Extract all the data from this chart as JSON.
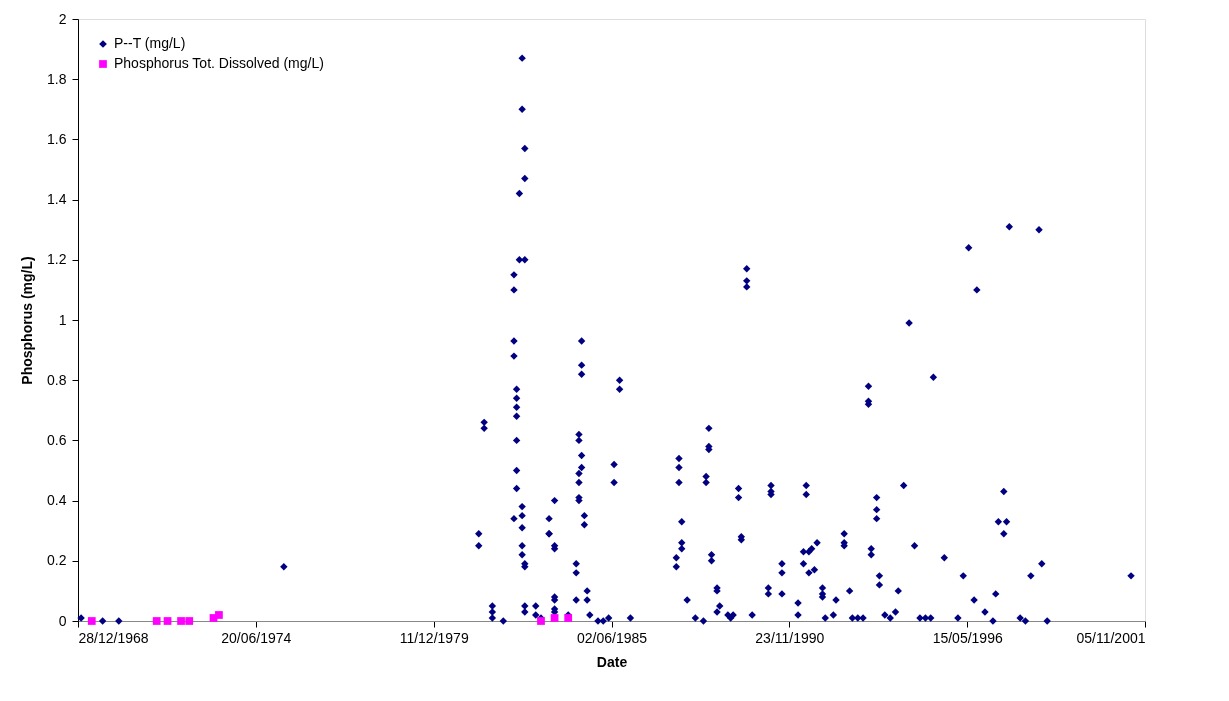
{
  "chart_data": {
    "type": "scatter",
    "xlabel": "Date",
    "ylabel": "Phosphorus (mg/L)",
    "xlim": [
      "1968-12-28",
      "2001-11-05"
    ],
    "xticks": [
      {
        "value": "1968-12-28",
        "label": "28/12/1968"
      },
      {
        "value": "1974-06-20",
        "label": "20/06/1974"
      },
      {
        "value": "1979-12-11",
        "label": "11/12/1979"
      },
      {
        "value": "1985-06-02",
        "label": "02/06/1985"
      },
      {
        "value": "1990-11-23",
        "label": "23/11/1990"
      },
      {
        "value": "1996-05-15",
        "label": "15/05/1996"
      },
      {
        "value": "2001-11-05",
        "label": "05/11/2001"
      }
    ],
    "ylim": [
      0,
      2
    ],
    "yticks": [
      0,
      0.2,
      0.4,
      0.6,
      0.8,
      1,
      1.2,
      1.4,
      1.6,
      1.8,
      2
    ],
    "grid": false,
    "legend": "top left",
    "series": [
      {
        "name": "P--T (mg/L)",
        "color": "#000080",
        "marker": "diamond",
        "x": [
          "1969-02",
          "1969-10",
          "1970-04",
          "1975-05",
          "1981-05",
          "1981-05",
          "1981-07",
          "1981-07",
          "1981-10",
          "1981-10",
          "1981-10",
          "1982-02",
          "1982-06",
          "1982-06",
          "1982-07",
          "1982-07",
          "1982-07",
          "1982-07",
          "1982-07",
          "1982-07",
          "1982-07",
          "1982-06",
          "1982-06",
          "1982-06",
          "1982-08",
          "1982-10",
          "1982-08",
          "1982-10",
          "1982-10",
          "1982-09",
          "1982-09",
          "1982-09",
          "1982-09",
          "1982-09",
          "1982-09",
          "1982-09",
          "1982-10",
          "1982-10",
          "1982-10",
          "1982-10",
          "1983-02",
          "1983-02",
          "1983-04",
          "1983-07",
          "1983-07",
          "1983-07",
          "1983-09",
          "1983-09",
          "1983-09",
          "1983-09",
          "1983-09",
          "1983-09",
          "1983-09",
          "1984-02",
          "1984-05",
          "1984-05",
          "1984-05",
          "1984-09",
          "1984-09",
          "1984-10",
          "1984-06",
          "1984-06",
          "1984-06",
          "1984-06",
          "1984-06",
          "1984-06",
          "1984-07",
          "1984-07",
          "1984-07",
          "1984-07",
          "1984-07",
          "1984-08",
          "1984-08",
          "1985-01",
          "1985-03",
          "1985-05",
          "1985-07",
          "1985-07",
          "1985-09",
          "1985-09",
          "1986-01",
          "1987-07",
          "1987-07",
          "1987-07",
          "1987-08",
          "1987-08",
          "1987-08",
          "1987-06",
          "1987-06",
          "1987-10",
          "1988-01",
          "1988-04",
          "1988-06",
          "1988-06",
          "1988-06",
          "1988-05",
          "1988-05",
          "1988-07",
          "1988-07",
          "1988-09",
          "1988-09",
          "1988-09",
          "1988-10",
          "1989-01",
          "1989-02",
          "1989-03",
          "1989-05",
          "1989-05",
          "1989-06",
          "1989-06",
          "1989-08",
          "1989-08",
          "1989-08",
          "1989-10",
          "1990-04",
          "1990-04",
          "1990-05",
          "1990-05",
          "1990-05",
          "1990-09",
          "1990-09",
          "1990-09",
          "1991-03",
          "1991-03",
          "1991-05",
          "1991-05",
          "1991-07",
          "1991-07",
          "1991-08",
          "1991-10",
          "1991-09",
          "1991-06",
          "1991-06",
          "1991-12",
          "1991-12",
          "1991-12",
          "1992-01",
          "1992-04",
          "1992-05",
          "1992-08",
          "1992-08",
          "1992-08",
          "1992-10",
          "1992-11",
          "1993-01",
          "1993-03",
          "1993-05",
          "1993-05",
          "1993-05",
          "1993-06",
          "1993-06",
          "1993-08",
          "1993-08",
          "1993-08",
          "1993-09",
          "1993-09",
          "1993-11",
          "1994-01",
          "1994-03",
          "1994-04",
          "1994-06",
          "1994-08",
          "1994-10",
          "1994-12",
          "1995-02",
          "1995-04",
          "1995-05",
          "1995-09",
          "1996-02",
          "1996-04",
          "1996-06",
          "1996-08",
          "1996-09",
          "1996-12",
          "1997-03",
          "1997-04",
          "1997-05",
          "1997-08",
          "1997-07",
          "1997-07",
          "1997-09",
          "1998-01",
          "1998-03",
          "1998-05",
          "1998-08",
          "1998-09",
          "1998-11",
          "2001-06"
        ],
        "values": [
          0.01,
          0,
          0,
          0.18,
          0.29,
          0.25,
          0.66,
          0.64,
          0.05,
          0.03,
          0.01,
          0,
          0.93,
          0.88,
          0.77,
          0.74,
          0.71,
          0.68,
          0.6,
          0.5,
          0.44,
          0.34,
          1.15,
          1.1,
          1.2,
          1.2,
          1.42,
          1.47,
          1.57,
          1.7,
          1.87,
          0.38,
          0.35,
          0.31,
          0.25,
          0.22,
          0.19,
          0.18,
          0.05,
          0.03,
          0.05,
          0.02,
          0.01,
          0.34,
          0.29,
          0.29,
          0.4,
          0.25,
          0.24,
          0.08,
          0.07,
          0.04,
          0.03,
          0.02,
          0.19,
          0.16,
          0.07,
          0.1,
          0.07,
          0.02,
          0.62,
          0.6,
          0.49,
          0.46,
          0.41,
          0.4,
          0.55,
          0.51,
          0.93,
          0.85,
          0.82,
          0.35,
          0.32,
          0,
          0,
          0.01,
          0.52,
          0.46,
          0.8,
          0.77,
          0.01,
          0.54,
          0.51,
          0.46,
          0.33,
          0.26,
          0.24,
          0.21,
          0.18,
          0.07,
          0.01,
          0,
          0.64,
          0.58,
          0.57,
          0.48,
          0.46,
          0.22,
          0.2,
          0.11,
          0.1,
          0.03,
          0.05,
          0.02,
          0.01,
          0.02,
          0.44,
          0.41,
          0.28,
          0.27,
          1.17,
          1.13,
          1.11,
          0.02,
          0.11,
          0.09,
          0.45,
          0.43,
          0.42,
          0.19,
          0.16,
          0.09,
          0.06,
          0.02,
          0.23,
          0.19,
          0.23,
          0.16,
          0.24,
          0.26,
          0.17,
          0.45,
          0.42,
          0.11,
          0.09,
          0.08,
          0.01,
          0.02,
          0.07,
          0.29,
          0.26,
          0.25,
          0.1,
          0.01,
          0.01,
          0.01,
          0.78,
          0.73,
          0.72,
          0.24,
          0.22,
          0.41,
          0.37,
          0.34,
          0.15,
          0.12,
          0.02,
          0.01,
          0.03,
          0.1,
          0.45,
          0.99,
          0.25,
          0.01,
          0.01,
          0.01,
          0.81,
          0.21,
          0.01,
          0.15,
          1.24,
          0.07,
          1.1,
          0.03,
          0,
          0.09,
          0.33,
          0.33,
          0.29,
          0.43,
          1.31,
          0.01,
          0,
          0.15,
          1.3,
          0.19,
          0,
          0.15
        ]
      },
      {
        "name": "Phosphorus Tot. Dissolved (mg/L)",
        "color": "#ff00ff",
        "marker": "square",
        "x": [
          "1969-06",
          "1971-06",
          "1971-10",
          "1972-03",
          "1972-06",
          "1973-03",
          "1973-05",
          "1983-04",
          "1983-09",
          "1984-02"
        ],
        "values": [
          0,
          0,
          0,
          0,
          0,
          0.01,
          0.02,
          0,
          0.01,
          0.01
        ]
      }
    ]
  }
}
